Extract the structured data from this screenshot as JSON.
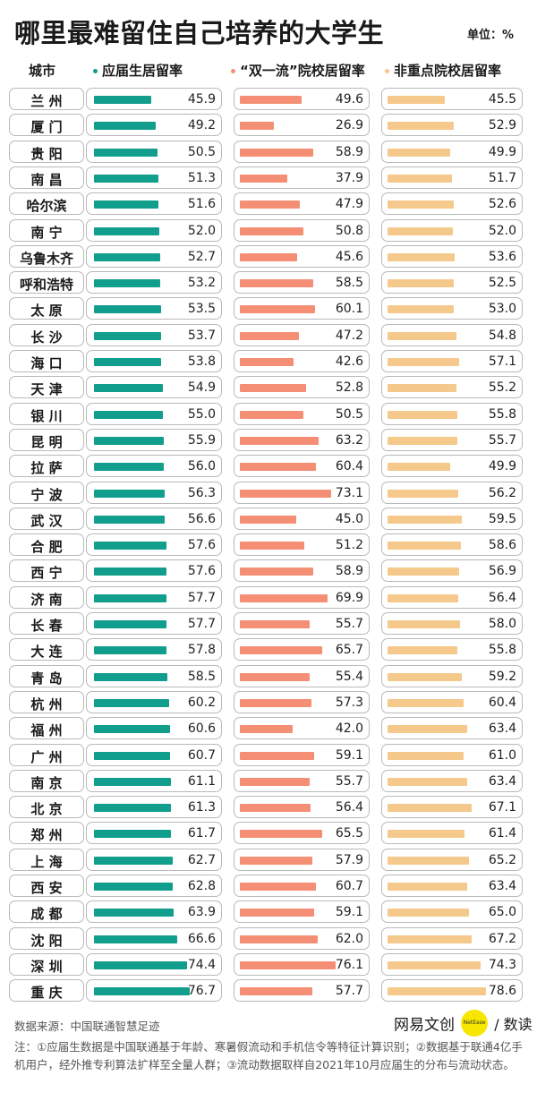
{
  "header": {
    "title": "哪里最难留住自己培养的大学生",
    "unit": "单位：%",
    "city_col": "城市"
  },
  "colors": {
    "series0": "#129e8d",
    "series1": "#f48f75",
    "series2": "#f4c98b"
  },
  "chart_data": {
    "type": "bar",
    "orientation": "horizontal",
    "title": "哪里最难留住自己培养的大学生",
    "unit": "%",
    "categories": [
      "兰 州",
      "厦 门",
      "贵 阳",
      "南 昌",
      "哈尔滨",
      "南 宁",
      "乌鲁木齐",
      "呼和浩特",
      "太 原",
      "长 沙",
      "海 口",
      "天 津",
      "银 川",
      "昆 明",
      "拉 萨",
      "宁 波",
      "武 汉",
      "合 肥",
      "西 宁",
      "济 南",
      "长 春",
      "大 连",
      "青 岛",
      "杭 州",
      "福 州",
      "广 州",
      "南 京",
      "北 京",
      "郑 州",
      "上 海",
      "西 安",
      "成 都",
      "沈 阳",
      "深 圳",
      "重 庆"
    ],
    "series": [
      {
        "name": "应届生居留率",
        "color": "#129e8d",
        "values": [
          "45.9",
          "49.2",
          "50.5",
          "51.3",
          "51.6",
          "52.0",
          "52.7",
          "53.2",
          "53.5",
          "53.7",
          "53.8",
          "54.9",
          "55.0",
          "55.9",
          "56.0",
          "56.3",
          "56.6",
          "57.6",
          "57.6",
          "57.7",
          "57.7",
          "57.8",
          "58.5",
          "60.2",
          "60.6",
          "60.7",
          "61.1",
          "61.3",
          "61.7",
          "62.7",
          "62.8",
          "63.9",
          "66.6",
          "74.4",
          "76.7"
        ]
      },
      {
        "name": "“双一流”院校居留率",
        "color": "#f48f75",
        "values": [
          "49.6",
          "26.9",
          "58.9",
          "37.9",
          "47.9",
          "50.8",
          "45.6",
          "58.5",
          "60.1",
          "47.2",
          "42.6",
          "52.8",
          "50.5",
          "63.2",
          "60.4",
          "73.1",
          "45.0",
          "51.2",
          "58.9",
          "69.9",
          "55.7",
          "65.7",
          "55.4",
          "57.3",
          "42.0",
          "59.1",
          "55.7",
          "56.4",
          "65.5",
          "57.9",
          "60.7",
          "59.1",
          "62.0",
          "76.1",
          "57.7"
        ]
      },
      {
        "name": "非重点院校居留率",
        "color": "#f4c98b",
        "values": [
          "45.5",
          "52.9",
          "49.9",
          "51.7",
          "52.6",
          "52.0",
          "53.6",
          "52.5",
          "53.0",
          "54.8",
          "57.1",
          "55.2",
          "55.8",
          "55.7",
          "49.9",
          "56.2",
          "59.5",
          "58.6",
          "56.9",
          "56.4",
          "58.0",
          "55.8",
          "59.2",
          "60.4",
          "63.4",
          "61.0",
          "63.4",
          "67.1",
          "61.4",
          "65.2",
          "63.4",
          "65.0",
          "67.2",
          "74.3",
          "78.6"
        ]
      }
    ]
  },
  "footer": {
    "source": "数据来源：中国联通智慧足迹",
    "note": "注：①应届生数据是中国联通基于年龄、寒暑假流动和手机信令等特征计算识别；②数据基于联通4亿手机用户，经外推专利算法扩样至全量人群；③流动数据取样自2021年10月应届生的分布与流动状态。",
    "brand": "网易文创",
    "brand_badge": "NetEase",
    "brand_sub": "/ 数读"
  }
}
